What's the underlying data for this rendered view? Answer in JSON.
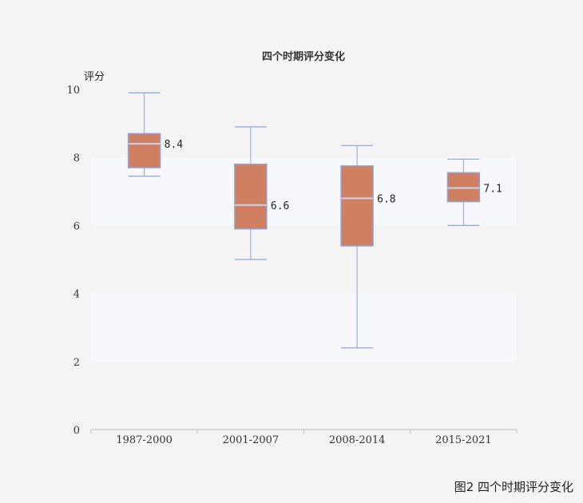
{
  "caption": "图2  四个时期评分变化",
  "chart_data": {
    "type": "boxplot",
    "title": "四个时期评分变化",
    "xlabel": "",
    "ylabel": "评分",
    "ylim": [
      0,
      10
    ],
    "yticks": [
      0,
      2,
      4,
      6,
      8,
      10
    ],
    "grid": "alternating horizontal bands",
    "legend": "none",
    "categories": [
      "1987-2000",
      "2001-2007",
      "2008-2014",
      "2015-2021"
    ],
    "boxes": [
      {
        "category": "1987-2000",
        "min": 7.45,
        "q1": 7.7,
        "median": 8.4,
        "q3": 8.7,
        "max": 9.9,
        "label": "8.4"
      },
      {
        "category": "2001-2007",
        "min": 5.0,
        "q1": 5.9,
        "median": 6.6,
        "q3": 7.8,
        "max": 8.9,
        "label": "6.6"
      },
      {
        "category": "2008-2014",
        "min": 2.4,
        "q1": 5.4,
        "median": 6.8,
        "q3": 7.75,
        "max": 8.35,
        "label": "6.8"
      },
      {
        "category": "2015-2021",
        "min": 6.0,
        "q1": 6.7,
        "median": 7.1,
        "q3": 7.55,
        "max": 7.95,
        "label": "7.1"
      }
    ],
    "colors": {
      "box_fill": "#d08060",
      "box_stroke": "#8fa3d6",
      "whisker": "#8fa3d6",
      "median": "#c9d4ef",
      "band": "#f7f8fb",
      "axis": "#bbbbbb"
    }
  }
}
